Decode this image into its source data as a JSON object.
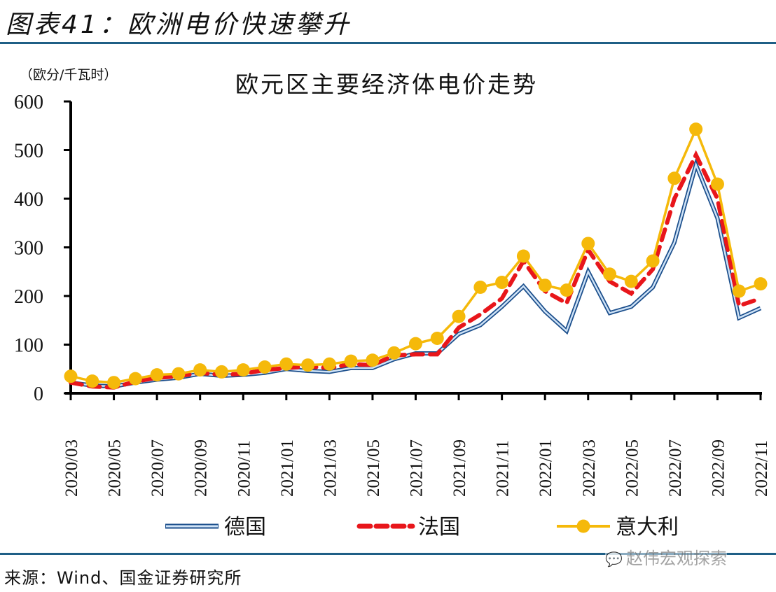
{
  "figure": {
    "title": "图表41：欧洲电价快速攀升",
    "source": "来源：Wind、国金证券研究所",
    "watermark": "赵伟宏观探索",
    "watermark_icon": "wechat-icon"
  },
  "chart_data": {
    "type": "line",
    "title": "欧元区主要经济体电价走势",
    "ylabel": "（欧分/千瓦时）",
    "xlabel": "",
    "ylim": [
      0,
      600
    ],
    "yticks": [
      0,
      100,
      200,
      300,
      400,
      500,
      600
    ],
    "grid": false,
    "legend_position": "bottom",
    "x": [
      "2020/03",
      "2020/04",
      "2020/05",
      "2020/06",
      "2020/07",
      "2020/08",
      "2020/09",
      "2020/10",
      "2020/11",
      "2020/12",
      "2021/01",
      "2021/02",
      "2021/03",
      "2021/04",
      "2021/05",
      "2021/06",
      "2021/07",
      "2021/08",
      "2021/09",
      "2021/10",
      "2021/11",
      "2021/12",
      "2022/01",
      "2022/02",
      "2022/03",
      "2022/04",
      "2022/05",
      "2022/06",
      "2022/07",
      "2022/08",
      "2022/09",
      "2022/10",
      "2022/11"
    ],
    "xtick_labels": [
      "2020/03",
      "2020/05",
      "2020/07",
      "2020/09",
      "2020/11",
      "2021/01",
      "2021/03",
      "2021/05",
      "2021/07",
      "2021/09",
      "2021/11",
      "2022/01",
      "2022/03",
      "2022/05",
      "2022/07",
      "2022/09",
      "2022/11"
    ],
    "series": [
      {
        "name": "德国",
        "color": "#2e6bb0",
        "fill": "#cfe3f7",
        "style": "double-line",
        "values": [
          22,
          16,
          14,
          22,
          28,
          32,
          40,
          36,
          38,
          42,
          50,
          46,
          44,
          52,
          52,
          70,
          82,
          82,
          122,
          140,
          178,
          220,
          168,
          128,
          250,
          165,
          178,
          218,
          310,
          470,
          360,
          155,
          175
        ]
      },
      {
        "name": "法国",
        "color": "#e8161b",
        "style": "dashed",
        "values": [
          22,
          14,
          12,
          24,
          32,
          35,
          42,
          38,
          40,
          48,
          52,
          55,
          52,
          60,
          58,
          78,
          80,
          80,
          135,
          162,
          195,
          272,
          210,
          185,
          295,
          230,
          205,
          255,
          400,
          490,
          400,
          180,
          195
        ]
      },
      {
        "name": "意大利",
        "color": "#f5b90a",
        "style": "line-marker",
        "values": [
          35,
          25,
          22,
          30,
          38,
          40,
          48,
          44,
          48,
          54,
          60,
          58,
          60,
          66,
          68,
          83,
          102,
          113,
          158,
          218,
          228,
          282,
          222,
          212,
          308,
          245,
          230,
          272,
          442,
          543,
          430,
          210,
          225
        ]
      }
    ]
  }
}
